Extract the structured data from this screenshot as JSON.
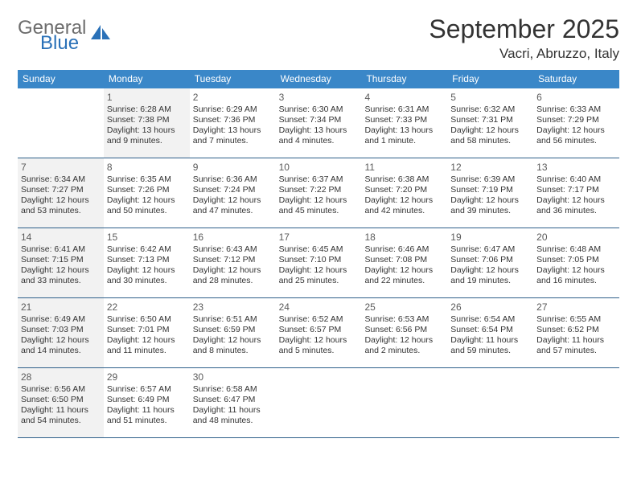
{
  "brand": {
    "part1": "General",
    "part2": "Blue",
    "sail_color": "#2a71b8"
  },
  "title": "September 2025",
  "location": "Vacri, Abruzzo, Italy",
  "accent_color": "#3a87c8",
  "row_divider_color": "#2e5f8a",
  "shaded_bg": "#f2f2f2",
  "dow": [
    "Sunday",
    "Monday",
    "Tuesday",
    "Wednesday",
    "Thursday",
    "Friday",
    "Saturday"
  ],
  "weeks": [
    [
      {
        "n": "",
        "shaded": false,
        "lines": []
      },
      {
        "n": "1",
        "shaded": true,
        "lines": [
          "Sunrise: 6:28 AM",
          "Sunset: 7:38 PM",
          "Daylight: 13 hours",
          "and 9 minutes."
        ]
      },
      {
        "n": "2",
        "shaded": false,
        "lines": [
          "Sunrise: 6:29 AM",
          "Sunset: 7:36 PM",
          "Daylight: 13 hours",
          "and 7 minutes."
        ]
      },
      {
        "n": "3",
        "shaded": false,
        "lines": [
          "Sunrise: 6:30 AM",
          "Sunset: 7:34 PM",
          "Daylight: 13 hours",
          "and 4 minutes."
        ]
      },
      {
        "n": "4",
        "shaded": false,
        "lines": [
          "Sunrise: 6:31 AM",
          "Sunset: 7:33 PM",
          "Daylight: 13 hours",
          "and 1 minute."
        ]
      },
      {
        "n": "5",
        "shaded": false,
        "lines": [
          "Sunrise: 6:32 AM",
          "Sunset: 7:31 PM",
          "Daylight: 12 hours",
          "and 58 minutes."
        ]
      },
      {
        "n": "6",
        "shaded": false,
        "lines": [
          "Sunrise: 6:33 AM",
          "Sunset: 7:29 PM",
          "Daylight: 12 hours",
          "and 56 minutes."
        ]
      }
    ],
    [
      {
        "n": "7",
        "shaded": true,
        "lines": [
          "Sunrise: 6:34 AM",
          "Sunset: 7:27 PM",
          "Daylight: 12 hours",
          "and 53 minutes."
        ]
      },
      {
        "n": "8",
        "shaded": false,
        "lines": [
          "Sunrise: 6:35 AM",
          "Sunset: 7:26 PM",
          "Daylight: 12 hours",
          "and 50 minutes."
        ]
      },
      {
        "n": "9",
        "shaded": false,
        "lines": [
          "Sunrise: 6:36 AM",
          "Sunset: 7:24 PM",
          "Daylight: 12 hours",
          "and 47 minutes."
        ]
      },
      {
        "n": "10",
        "shaded": false,
        "lines": [
          "Sunrise: 6:37 AM",
          "Sunset: 7:22 PM",
          "Daylight: 12 hours",
          "and 45 minutes."
        ]
      },
      {
        "n": "11",
        "shaded": false,
        "lines": [
          "Sunrise: 6:38 AM",
          "Sunset: 7:20 PM",
          "Daylight: 12 hours",
          "and 42 minutes."
        ]
      },
      {
        "n": "12",
        "shaded": false,
        "lines": [
          "Sunrise: 6:39 AM",
          "Sunset: 7:19 PM",
          "Daylight: 12 hours",
          "and 39 minutes."
        ]
      },
      {
        "n": "13",
        "shaded": false,
        "lines": [
          "Sunrise: 6:40 AM",
          "Sunset: 7:17 PM",
          "Daylight: 12 hours",
          "and 36 minutes."
        ]
      }
    ],
    [
      {
        "n": "14",
        "shaded": true,
        "lines": [
          "Sunrise: 6:41 AM",
          "Sunset: 7:15 PM",
          "Daylight: 12 hours",
          "and 33 minutes."
        ]
      },
      {
        "n": "15",
        "shaded": false,
        "lines": [
          "Sunrise: 6:42 AM",
          "Sunset: 7:13 PM",
          "Daylight: 12 hours",
          "and 30 minutes."
        ]
      },
      {
        "n": "16",
        "shaded": false,
        "lines": [
          "Sunrise: 6:43 AM",
          "Sunset: 7:12 PM",
          "Daylight: 12 hours",
          "and 28 minutes."
        ]
      },
      {
        "n": "17",
        "shaded": false,
        "lines": [
          "Sunrise: 6:45 AM",
          "Sunset: 7:10 PM",
          "Daylight: 12 hours",
          "and 25 minutes."
        ]
      },
      {
        "n": "18",
        "shaded": false,
        "lines": [
          "Sunrise: 6:46 AM",
          "Sunset: 7:08 PM",
          "Daylight: 12 hours",
          "and 22 minutes."
        ]
      },
      {
        "n": "19",
        "shaded": false,
        "lines": [
          "Sunrise: 6:47 AM",
          "Sunset: 7:06 PM",
          "Daylight: 12 hours",
          "and 19 minutes."
        ]
      },
      {
        "n": "20",
        "shaded": false,
        "lines": [
          "Sunrise: 6:48 AM",
          "Sunset: 7:05 PM",
          "Daylight: 12 hours",
          "and 16 minutes."
        ]
      }
    ],
    [
      {
        "n": "21",
        "shaded": true,
        "lines": [
          "Sunrise: 6:49 AM",
          "Sunset: 7:03 PM",
          "Daylight: 12 hours",
          "and 14 minutes."
        ]
      },
      {
        "n": "22",
        "shaded": false,
        "lines": [
          "Sunrise: 6:50 AM",
          "Sunset: 7:01 PM",
          "Daylight: 12 hours",
          "and 11 minutes."
        ]
      },
      {
        "n": "23",
        "shaded": false,
        "lines": [
          "Sunrise: 6:51 AM",
          "Sunset: 6:59 PM",
          "Daylight: 12 hours",
          "and 8 minutes."
        ]
      },
      {
        "n": "24",
        "shaded": false,
        "lines": [
          "Sunrise: 6:52 AM",
          "Sunset: 6:57 PM",
          "Daylight: 12 hours",
          "and 5 minutes."
        ]
      },
      {
        "n": "25",
        "shaded": false,
        "lines": [
          "Sunrise: 6:53 AM",
          "Sunset: 6:56 PM",
          "Daylight: 12 hours",
          "and 2 minutes."
        ]
      },
      {
        "n": "26",
        "shaded": false,
        "lines": [
          "Sunrise: 6:54 AM",
          "Sunset: 6:54 PM",
          "Daylight: 11 hours",
          "and 59 minutes."
        ]
      },
      {
        "n": "27",
        "shaded": false,
        "lines": [
          "Sunrise: 6:55 AM",
          "Sunset: 6:52 PM",
          "Daylight: 11 hours",
          "and 57 minutes."
        ]
      }
    ],
    [
      {
        "n": "28",
        "shaded": true,
        "lines": [
          "Sunrise: 6:56 AM",
          "Sunset: 6:50 PM",
          "Daylight: 11 hours",
          "and 54 minutes."
        ]
      },
      {
        "n": "29",
        "shaded": false,
        "lines": [
          "Sunrise: 6:57 AM",
          "Sunset: 6:49 PM",
          "Daylight: 11 hours",
          "and 51 minutes."
        ]
      },
      {
        "n": "30",
        "shaded": false,
        "lines": [
          "Sunrise: 6:58 AM",
          "Sunset: 6:47 PM",
          "Daylight: 11 hours",
          "and 48 minutes."
        ]
      },
      {
        "n": "",
        "shaded": false,
        "lines": []
      },
      {
        "n": "",
        "shaded": false,
        "lines": []
      },
      {
        "n": "",
        "shaded": false,
        "lines": []
      },
      {
        "n": "",
        "shaded": false,
        "lines": []
      }
    ]
  ]
}
